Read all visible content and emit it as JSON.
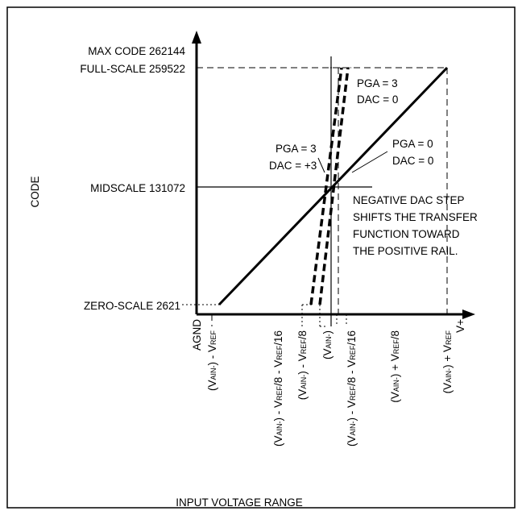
{
  "axes": {
    "y_label": "CODE",
    "x_label": "INPUT VOLTAGE RANGE"
  },
  "y_markers": {
    "max_code": "MAX CODE 262144",
    "full_scale": "FULL-SCALE 259522",
    "midscale": "MIDSCALE 131072",
    "zero_scale": "ZERO-SCALE 2621"
  },
  "x_ticks": {
    "agnd": "AGND",
    "v_plus": "V+",
    "t1": {
      "pre": "(V",
      "sub": "AIN-",
      "post": ") - V",
      "sub2": "REF",
      "tail": ""
    },
    "t2": {
      "pre": "(V",
      "sub": "AIN-",
      "post": ") - V",
      "sub2": "REF",
      "tail": "/8 - V",
      "sub3": "REF",
      "tail2": "/16"
    },
    "t3": {
      "pre": "(V",
      "sub": "AIN-",
      "post": ") - V",
      "sub2": "REF",
      "tail": "/8"
    },
    "t4": {
      "pre": "(V",
      "sub": "AIN-",
      "post": ")"
    },
    "t5": {
      "pre": "(V",
      "sub": "AIN-",
      "post": ") - V",
      "sub2": "REF",
      "tail": "/8 - V",
      "sub3": "REF",
      "tail2": "/16"
    },
    "t6": {
      "pre": "(V",
      "sub": "AIN-",
      "post": ") + V",
      "sub2": "REF",
      "tail": "/8"
    },
    "t7": {
      "pre": "(V",
      "sub": "AIN-",
      "post": ") + V",
      "sub2": "REF",
      "tail": ""
    }
  },
  "annotations": {
    "pga3_dac0": [
      "PGA = 3",
      "DAC = 0"
    ],
    "pga3_dac3": [
      "PGA = 3",
      "DAC = +3"
    ],
    "pga0_dac0": [
      "PGA = 0",
      "DAC = 0"
    ],
    "note": [
      "NEGATIVE DAC STEP",
      "SHIFTS THE TRANSFER",
      "FUNCTION TOWARD",
      "THE POSITIVE RAIL."
    ]
  }
}
